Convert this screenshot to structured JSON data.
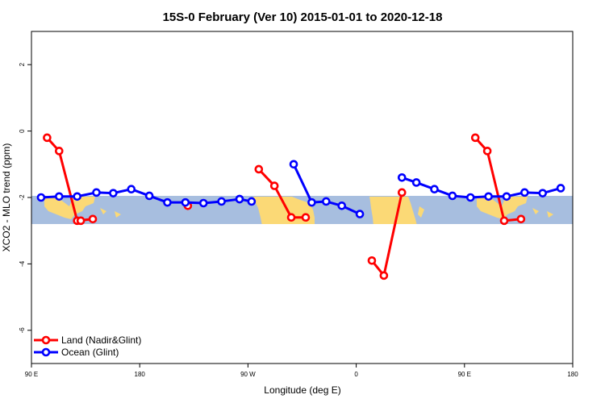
{
  "chart_data": {
    "type": "line",
    "title": "15S-0 February (Ver 10)   2015-01-01 to 2020-12-18",
    "xlabel": "Longitude (deg E)",
    "ylabel": "XCO2 - MLO trend (ppm)",
    "xlim": [
      90,
      540
    ],
    "ylim": [
      -7.0,
      3.0
    ],
    "x_ticks": [
      {
        "value": 90,
        "label": "90 E"
      },
      {
        "value": 180,
        "label": "180"
      },
      {
        "value": 270,
        "label": "90 W"
      },
      {
        "value": 360,
        "label": "0"
      },
      {
        "value": 450,
        "label": "90 E"
      },
      {
        "value": 540,
        "label": "180"
      }
    ],
    "y_ticks": [
      {
        "value": 2,
        "label": "2"
      },
      {
        "value": 0,
        "label": "0"
      },
      {
        "value": -2,
        "label": "-2"
      },
      {
        "value": -4,
        "label": "-4"
      },
      {
        "value": -6,
        "label": "-6"
      }
    ],
    "latitude_band": {
      "ocean_color": "#a7bedf",
      "land_color": "#fbd976",
      "y_range": [
        -2.8,
        -1.95
      ]
    },
    "series": [
      {
        "name": "Land (Nadir&Glint)",
        "color": "#ff0000",
        "segments": [
          {
            "x": [
              103,
              113,
              128,
              141
            ],
            "y": [
              -0.2,
              -0.6,
              -2.7,
              -2.65
            ]
          },
          {
            "x": [
              131
            ],
            "y": [
              -2.7
            ]
          },
          {
            "x": [
              220
            ],
            "y": [
              -2.25
            ]
          },
          {
            "x": [
              279,
              292,
              306,
              318
            ],
            "y": [
              -1.15,
              -1.65,
              -2.6,
              -2.6
            ]
          },
          {
            "x": [
              373,
              383,
              398
            ],
            "y": [
              -3.9,
              -4.35,
              -1.85
            ]
          },
          {
            "x": [
              459,
              469,
              483,
              497
            ],
            "y": [
              -0.2,
              -0.6,
              -2.7,
              -2.65
            ]
          }
        ]
      },
      {
        "name": "Ocean (Glint)",
        "color": "#0000ff",
        "segments": [
          {
            "x": [
              98,
              113,
              128,
              144,
              158,
              173,
              188,
              203,
              218,
              233,
              248,
              263
            ],
            "y": [
              -2.0,
              -1.97,
              -1.97,
              -1.85,
              -1.87,
              -1.75,
              -1.95,
              -2.15,
              -2.15,
              -2.17,
              -2.12,
              -2.05
            ]
          },
          {
            "x": [
              263,
              273
            ],
            "y": [
              -2.05,
              -2.12
            ]
          },
          {
            "x": [
              308,
              323,
              335,
              348,
              363
            ],
            "y": [
              -1.0,
              -2.15,
              -2.12,
              -2.25,
              -2.5
            ]
          },
          {
            "x": [
              398,
              410,
              425,
              440,
              455,
              470,
              485,
              500,
              515,
              530
            ],
            "y": [
              -1.4,
              -1.55,
              -1.75,
              -1.95,
              -2.0,
              -1.97,
              -1.97,
              -1.85,
              -1.87,
              -1.72
            ]
          }
        ]
      }
    ],
    "legend": {
      "placement": "bottom-left",
      "entries": [
        "Land (Nadir&Glint)",
        "Ocean (Glint)"
      ]
    }
  }
}
